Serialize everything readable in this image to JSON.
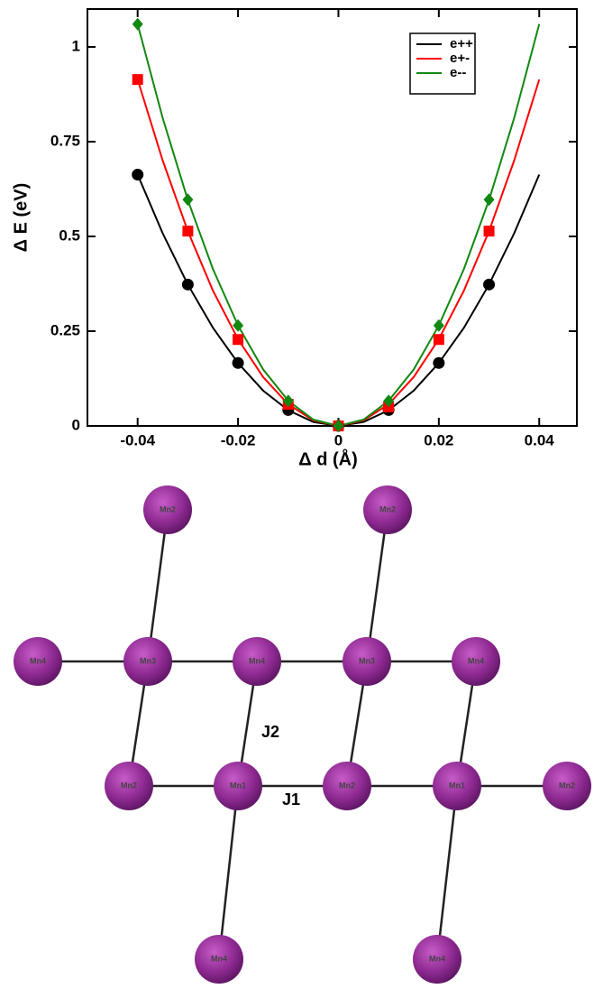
{
  "chart_data": {
    "type": "scatter",
    "xlabel": "Δ d (Å)",
    "ylabel": "Δ E (eV)",
    "x": [
      -0.04,
      -0.03,
      -0.02,
      -0.01,
      0,
      0.01,
      0.02,
      0.03
    ],
    "fit_x": [
      -0.04,
      -0.035,
      -0.03,
      -0.025,
      -0.02,
      -0.015,
      -0.01,
      -0.005,
      0,
      0.005,
      0.01,
      0.015,
      0.02,
      0.025,
      0.03,
      0.035,
      0.04
    ],
    "series": [
      {
        "name": "e++",
        "color": "#000000",
        "marker": "circle",
        "values": [
          0.663,
          0.373,
          0.166,
          0.042,
          0,
          0.042,
          0.166,
          0.373
        ],
        "fit_values": [
          0.663,
          0.508,
          0.373,
          0.259,
          0.166,
          0.0932,
          0.0414,
          0.0104,
          0,
          0.0104,
          0.0414,
          0.0932,
          0.166,
          0.259,
          0.373,
          0.508,
          0.663
        ]
      },
      {
        "name": "e+-",
        "color": "#ff0000",
        "marker": "square",
        "values": [
          0.914,
          0.514,
          0.228,
          0.057,
          0,
          0.05,
          0.228,
          0.514
        ],
        "fit_values": [
          0.914,
          0.7,
          0.514,
          0.357,
          0.229,
          0.129,
          0.0571,
          0.0143,
          0,
          0.0143,
          0.0571,
          0.129,
          0.229,
          0.357,
          0.514,
          0.7,
          0.914
        ]
      },
      {
        "name": "e--",
        "color": "#118811",
        "marker": "diamond",
        "values": [
          1.06,
          0.597,
          0.265,
          0.066,
          0,
          0.066,
          0.265,
          0.597
        ],
        "fit_values": [
          1.06,
          0.812,
          0.596,
          0.414,
          0.265,
          0.149,
          0.0663,
          0.0166,
          0,
          0.0166,
          0.0663,
          0.149,
          0.265,
          0.414,
          0.596,
          0.812,
          1.06
        ]
      }
    ],
    "xlim": [
      -0.05,
      0.0475
    ],
    "ylim": [
      0,
      1.1
    ],
    "xticks": [
      -0.04,
      -0.02,
      0,
      0.02,
      0.04
    ],
    "yticks": [
      0,
      0.25,
      0.5,
      0.75,
      1
    ],
    "legend": "upper right"
  },
  "diagram": {
    "nodes": [
      "Mn2",
      "Mn2",
      "Mn4",
      "Mn3",
      "Mn4",
      "Mn3",
      "Mn4",
      "Mn2",
      "Mn1",
      "Mn2",
      "Mn1",
      "Mn2",
      "Mn4",
      "Mn4"
    ],
    "labels": [
      "J2",
      "J1"
    ]
  }
}
